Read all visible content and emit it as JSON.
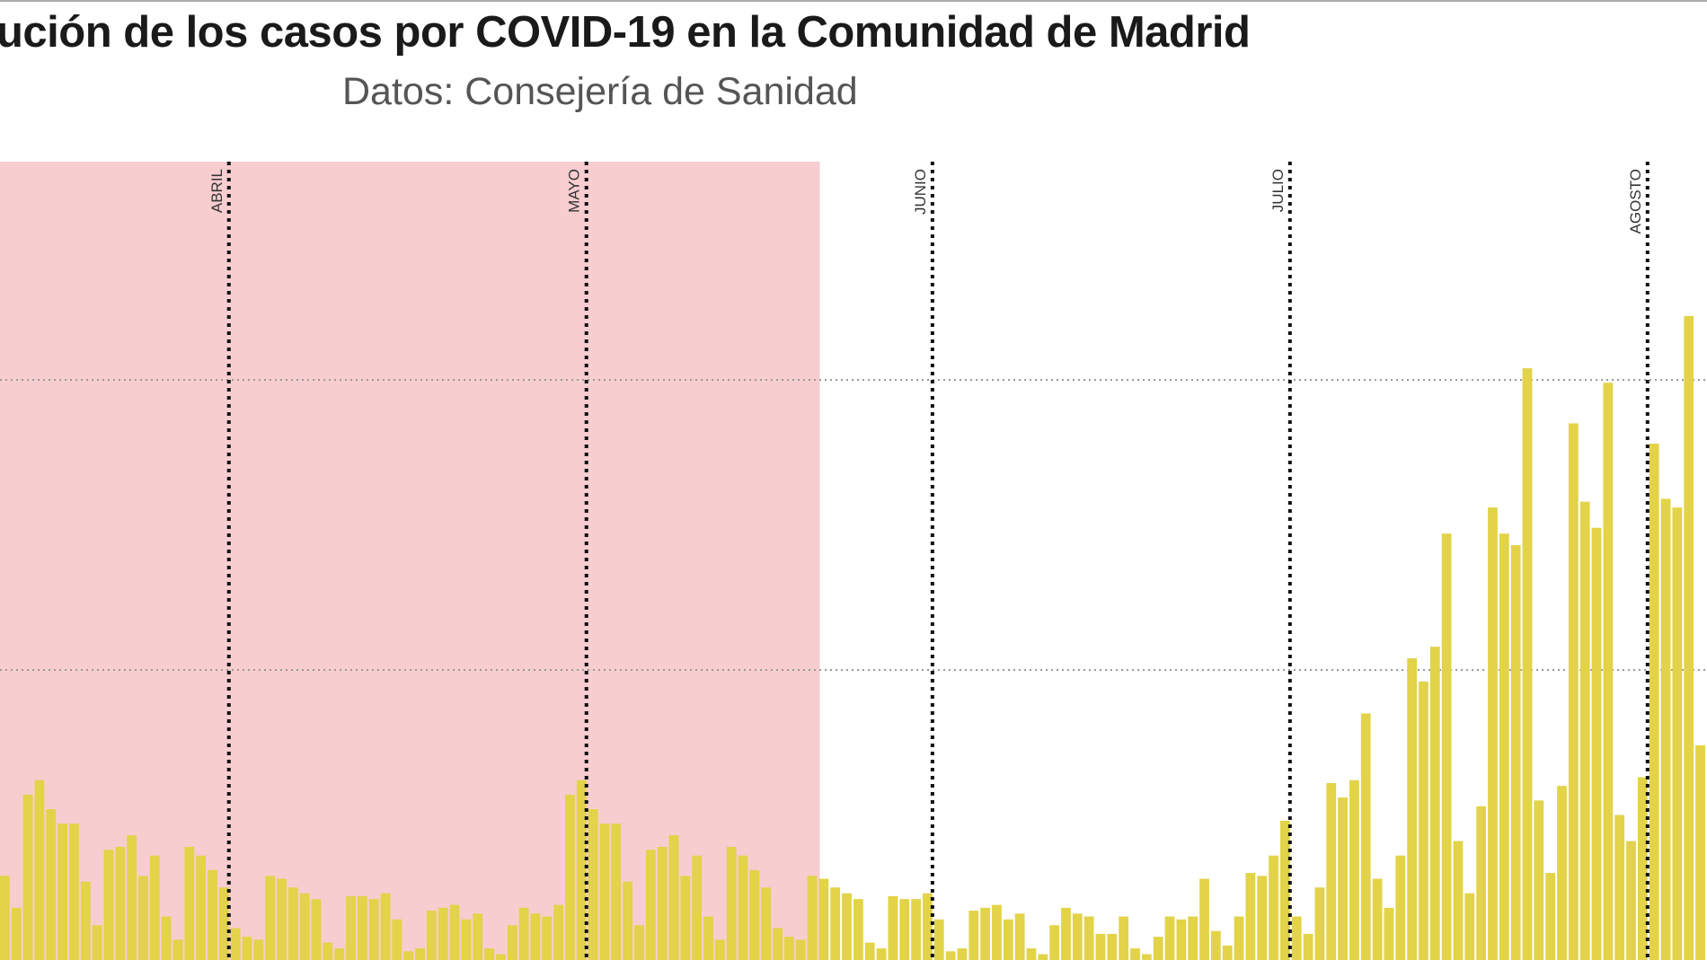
{
  "chart_data": {
    "type": "bar",
    "title": "ución de los casos por COVID-19 en la Comunidad de Madrid",
    "subtitle": "Datos: Consejería de Sanidad",
    "xlabel": "",
    "ylabel": "",
    "y_units_note": "values expressed relative to the unlabeled horizontal gridlines (lower gridline = 1, upper gridline = 2)",
    "gridlines": [
      1,
      2
    ],
    "ylim": [
      0,
      2.57
    ],
    "grid": true,
    "colors": {
      "bar": "#e2d348",
      "shade": "#f7cdd0",
      "month_line": "#111111",
      "grid": "#999999"
    },
    "shaded_bars": [
      1,
      71
    ],
    "month_markers": [
      {
        "label": "ABRIL",
        "after_bar": 20
      },
      {
        "label": "MAYO",
        "after_bar": 51
      },
      {
        "label": "JUNIO",
        "after_bar": 81
      },
      {
        "label": "JULIO",
        "after_bar": 112
      },
      {
        "label": "AGOSTO",
        "after_bar": 143
      }
    ],
    "values": [
      0.29,
      0.18,
      0.57,
      0.62,
      0.52,
      0.47,
      0.47,
      0.27,
      0.12,
      0.38,
      0.39,
      0.43,
      0.29,
      0.36,
      0.15,
      0.07,
      0.39,
      0.36,
      0.31,
      0.25,
      0.11,
      0.08,
      0.07,
      0.29,
      0.28,
      0.25,
      0.23,
      0.21,
      0.06,
      0.04,
      0.22,
      0.22,
      0.21,
      0.23,
      0.14,
      0.03,
      0.04,
      0.17,
      0.18,
      0.19,
      0.14,
      0.16,
      0.04,
      0.02,
      0.12,
      0.18,
      0.16,
      0.15,
      0.19,
      0.57,
      0.62,
      0.52,
      0.47,
      0.47,
      0.27,
      0.12,
      0.38,
      0.39,
      0.43,
      0.29,
      0.36,
      0.15,
      0.07,
      0.39,
      0.36,
      0.31,
      0.25,
      0.11,
      0.08,
      0.07,
      0.29,
      0.28,
      0.25,
      0.23,
      0.21,
      0.06,
      0.04,
      0.22,
      0.21,
      0.21,
      0.23,
      0.14,
      0.03,
      0.04,
      0.17,
      0.18,
      0.19,
      0.14,
      0.16,
      0.04,
      0.02,
      0.12,
      0.18,
      0.16,
      0.15,
      0.09,
      0.09,
      0.15,
      0.04,
      0.02,
      0.08,
      0.15,
      0.14,
      0.15,
      0.28,
      0.1,
      0.05,
      0.15,
      0.3,
      0.29,
      0.36,
      0.48,
      0.15,
      0.09,
      0.25,
      0.61,
      0.56,
      0.62,
      0.85,
      0.28,
      0.18,
      0.36,
      1.04,
      0.96,
      1.08,
      1.47,
      0.41,
      0.23,
      0.53,
      1.56,
      1.47,
      1.43,
      2.04,
      0.55,
      0.3,
      0.6,
      1.85,
      1.58,
      1.49,
      1.99,
      0.5,
      0.41,
      0.63,
      1.78,
      1.59,
      1.56,
      2.22,
      0.74
    ]
  }
}
